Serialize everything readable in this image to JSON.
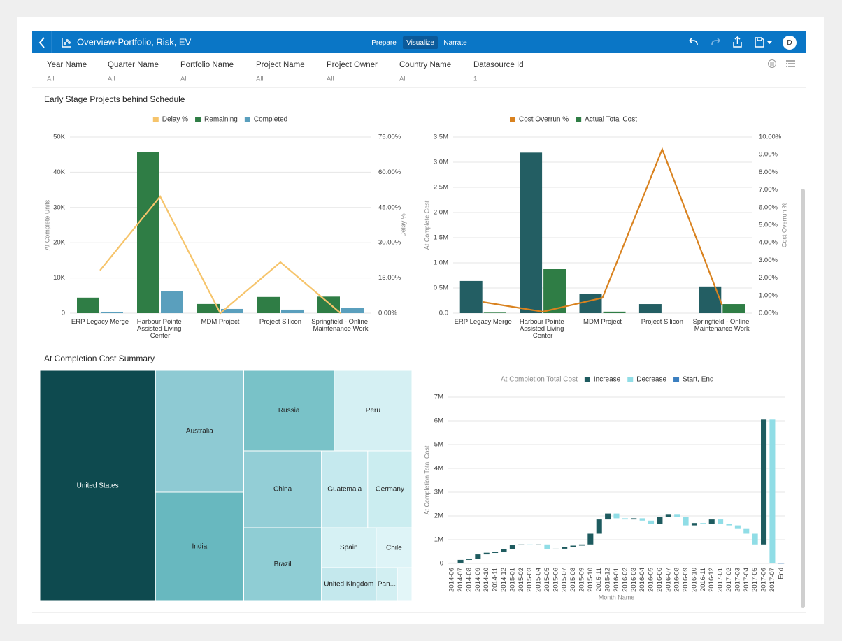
{
  "app": {
    "title": "Overview-Portfolio, Risk, EV",
    "tabs": [
      "Prepare",
      "Visualize",
      "Narrate"
    ],
    "active_tab": 1,
    "user_initial": "D"
  },
  "filters": [
    {
      "label": "Year Name",
      "value": "All"
    },
    {
      "label": "Quarter Name",
      "value": "All"
    },
    {
      "label": "Portfolio Name",
      "value": "All"
    },
    {
      "label": "Project Name",
      "value": "All"
    },
    {
      "label": "Project Owner",
      "value": "All"
    },
    {
      "label": "Country Name",
      "value": "All"
    },
    {
      "label": "Datasource Id",
      "value": "1"
    }
  ],
  "chart_data": [
    {
      "type": "bar",
      "title": "Early Stage Projects behind Schedule",
      "y_label": "At Complete Units",
      "y2_label": "Delay %",
      "categories": [
        "ERP Legacy Merge",
        "Harbour Pointe Assisted Living Center",
        "MDM Project",
        "Project Silicon",
        "Springfield - Online Maintenance Work"
      ],
      "series": [
        {
          "name": "Delay %",
          "type": "line",
          "axis": "y2",
          "color": "#f6c46b",
          "values": [
            18.2,
            49.7,
            0,
            21.7,
            0
          ]
        },
        {
          "name": "Remaining",
          "color": "#2f7d45",
          "values": [
            4400,
            45800,
            2600,
            4600,
            4700
          ]
        },
        {
          "name": "Completed",
          "color": "#5a9fbd",
          "values": [
            400,
            6200,
            1200,
            1000,
            1400
          ]
        }
      ],
      "ylim": [
        0,
        50000
      ],
      "yticks": [
        0,
        {
          "value": 10000,
          "label": "10K"
        },
        {
          "value": 20000,
          "label": "20K"
        },
        {
          "value": 30000,
          "label": "30K"
        },
        {
          "value": 40000,
          "label": "40K"
        },
        {
          "value": 50000,
          "label": "50K"
        }
      ],
      "y2lim": [
        0,
        75
      ],
      "y2ticks": [
        {
          "value": 0,
          "label": "0.00%"
        },
        {
          "value": 15,
          "label": "15.00%"
        },
        {
          "value": 30,
          "label": "30.00%"
        },
        {
          "value": 45,
          "label": "45.00%"
        },
        {
          "value": 60,
          "label": "60.00%"
        },
        {
          "value": 75,
          "label": "75.00%"
        }
      ],
      "grid": true
    },
    {
      "type": "bar",
      "y_label": "At Complete Cost",
      "y2_label": "Cost Overrun %",
      "categories": [
        "ERP Legacy Merge",
        "Harbour Pointe Assisted Living Center",
        "MDM Project",
        "Project Silicon",
        "Springfield - Online Maintenance Work"
      ],
      "series": [
        {
          "name": "Cost Overrun %",
          "type": "line",
          "axis": "y2",
          "color": "#d9821f",
          "values": [
            0.63,
            0.08,
            0.87,
            9.3,
            0.48
          ]
        },
        {
          "color": "#235e63",
          "values": [
            640000,
            3190000,
            375000,
            180000,
            530000
          ]
        },
        {
          "name": "Actual Total Cost",
          "color": "#2f7d45",
          "values": [
            10000,
            875000,
            30000,
            null,
            180000
          ]
        }
      ],
      "ylim": [
        0,
        3500000
      ],
      "yticks": [
        {
          "value": 0,
          "label": "0.0"
        },
        {
          "value": 500000,
          "label": "0.5M"
        },
        {
          "value": 1000000,
          "label": "1.0M"
        },
        {
          "value": 1500000,
          "label": "1.5M"
        },
        {
          "value": 2000000,
          "label": "2.0M"
        },
        {
          "value": 2500000,
          "label": "2.5M"
        },
        {
          "value": 3000000,
          "label": "3.0M"
        },
        {
          "value": 3500000,
          "label": "3.5M"
        }
      ],
      "y2lim": [
        0,
        10
      ],
      "y2ticks": [
        {
          "value": 0,
          "label": "0.00%"
        },
        {
          "value": 1,
          "label": "1.00%"
        },
        {
          "value": 2,
          "label": "2.00%"
        },
        {
          "value": 3,
          "label": "3.00%"
        },
        {
          "value": 4,
          "label": "4.00%"
        },
        {
          "value": 5,
          "label": "5.00%"
        },
        {
          "value": 6,
          "label": "6.00%"
        },
        {
          "value": 7,
          "label": "7.00%"
        },
        {
          "value": 8,
          "label": "8.00%"
        },
        {
          "value": 9,
          "label": "9.00%"
        },
        {
          "value": 10,
          "label": "10.00%"
        }
      ],
      "grid": true
    },
    {
      "type": "treemap",
      "title": "At Completion Cost Summary",
      "categories": [
        "United States",
        "Australia",
        "India",
        "Russia",
        "Peru",
        "China",
        "Brazil",
        "Guatemala",
        "Germany",
        "Spain",
        "United Kingdom",
        "Chile",
        "Pan...",
        null
      ],
      "values": [
        1850000,
        745000,
        668000,
        504000,
        434000,
        415000,
        396000,
        247000,
        236000,
        151000,
        127000,
        99000,
        49000,
        34000
      ],
      "colors": [
        "#0e4a4f",
        "#8ecad3",
        "#68b8bf",
        "#79c2c8",
        "#d5f0f3",
        "#93ced6",
        "#8fcdd4",
        "#c5e9ee",
        "#cbedf0",
        "#d6f1f4",
        "#c4e8ed",
        "#def4f7",
        "#d2eff2",
        "#e3f6f8"
      ]
    },
    {
      "type": "waterfall",
      "legend_title": "At Completion Total Cost",
      "y_label": "At Completion Total Cost",
      "x_label": "Month Name",
      "categories": [
        "2014-06",
        "2014-07",
        "2014-08",
        "2014-09",
        "2014-10",
        "2014-11",
        "2014-12",
        "2015-01",
        "2015-02",
        "2015-03",
        "2015-04",
        "2015-05",
        "2015-06",
        "2015-07",
        "2015-08",
        "2015-09",
        "2015-10",
        "2015-11",
        "2015-12",
        "2016-01",
        "2016-02",
        "2016-03",
        "2016-04",
        "2016-05",
        "2016-06",
        "2016-07",
        "2016-08",
        "2016-09",
        "2016-10",
        "2016-11",
        "2016-12",
        "2017-01",
        "2017-02",
        "2017-03",
        "2017-04",
        "2017-05",
        "2017-06",
        "2017-07",
        "End"
      ],
      "values": [
        30000,
        120000,
        50000,
        180000,
        70000,
        20000,
        130000,
        180000,
        20000,
        -30000,
        30000,
        -200000,
        20000,
        60000,
        70000,
        50000,
        450000,
        600000,
        250000,
        -200000,
        -50000,
        50000,
        -100000,
        -150000,
        300000,
        100000,
        -100000,
        -350000,
        100000,
        -50000,
        200000,
        -200000,
        -50000,
        -150000,
        -200000,
        -450000,
        5250000,
        -6030000,
        20000
      ],
      "measures": [
        "relative",
        "relative",
        "relative",
        "relative",
        "relative",
        "relative",
        "relative",
        "relative",
        "relative",
        "relative",
        "relative",
        "relative",
        "relative",
        "relative",
        "relative",
        "relative",
        "relative",
        "relative",
        "relative",
        "relative",
        "relative",
        "relative",
        "relative",
        "relative",
        "relative",
        "relative",
        "relative",
        "relative",
        "relative",
        "relative",
        "relative",
        "relative",
        "relative",
        "relative",
        "relative",
        "relative",
        "relative",
        "relative",
        "total"
      ],
      "legend": [
        {
          "name": "Increase",
          "color": "#1e5b5f"
        },
        {
          "name": "Decrease",
          "color": "#90dde6"
        },
        {
          "name": "Start, End",
          "color": "#3b7fc0"
        }
      ],
      "ylim": [
        0,
        7000000
      ],
      "yticks": [
        0,
        {
          "value": 1000000,
          "label": "1M"
        },
        {
          "value": 2000000,
          "label": "2M"
        },
        {
          "value": 3000000,
          "label": "3M"
        },
        {
          "value": 4000000,
          "label": "4M"
        },
        {
          "value": 5000000,
          "label": "5M"
        },
        {
          "value": 6000000,
          "label": "6M"
        },
        {
          "value": 7000000,
          "label": "7M"
        }
      ],
      "grid": true
    }
  ]
}
